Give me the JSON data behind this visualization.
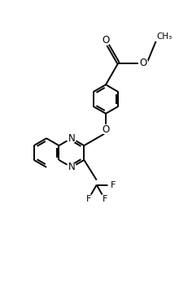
{
  "bg_color": "#ffffff",
  "line_color": "#000000",
  "line_width": 1.4,
  "figsize": [
    2.2,
    3.52
  ],
  "dpi": 100,
  "xlim": [
    0,
    11
  ],
  "ylim": [
    0,
    17.6
  ]
}
